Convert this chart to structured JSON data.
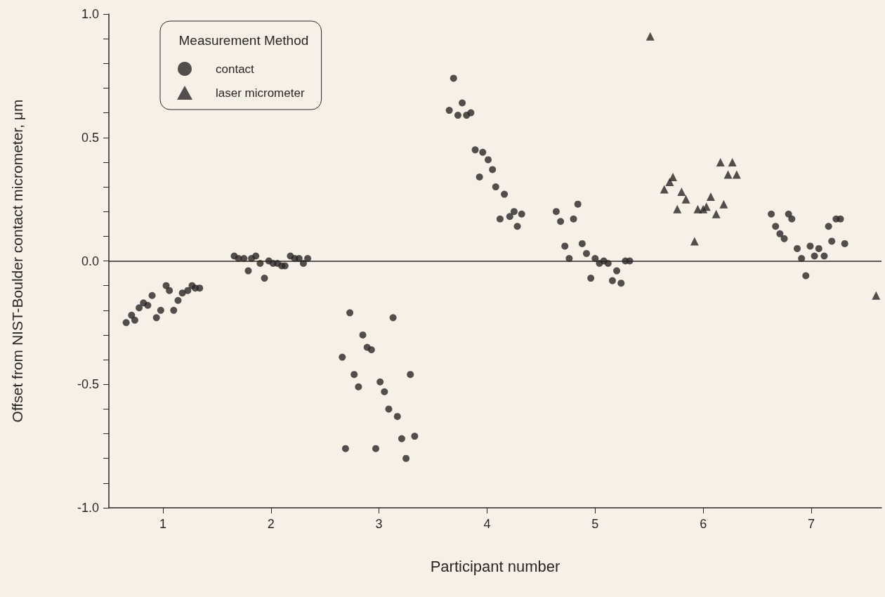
{
  "chart_data": {
    "type": "scatter",
    "xlabel": "Participant number",
    "ylabel": "Offset from NIST-Boulder contact micrometer, μm",
    "legend_title": "Measurement Method",
    "legend": "top left",
    "grid": false,
    "xlim": [
      0.5,
      7.65
    ],
    "xticks": [
      1,
      2,
      3,
      4,
      5,
      6,
      7
    ],
    "ylim": [
      -1.0,
      1.0
    ],
    "yticks": [
      {
        "value": -1.0,
        "label": "-1.0"
      },
      {
        "value": -0.9,
        "label": null
      },
      {
        "value": -0.8,
        "label": null
      },
      {
        "value": -0.7,
        "label": null
      },
      {
        "value": -0.6,
        "label": null
      },
      {
        "value": -0.5,
        "label": "-0.5"
      },
      {
        "value": -0.4,
        "label": null
      },
      {
        "value": -0.3,
        "label": null
      },
      {
        "value": -0.2,
        "label": null
      },
      {
        "value": -0.1,
        "label": null
      },
      {
        "value": 0,
        "label": "0.0"
      },
      {
        "value": 0.1,
        "label": null
      },
      {
        "value": 0.2,
        "label": null
      },
      {
        "value": 0.3,
        "label": null
      },
      {
        "value": 0.4,
        "label": null
      },
      {
        "value": 0.5,
        "label": "0.5"
      },
      {
        "value": 0.6,
        "label": null
      },
      {
        "value": 0.7,
        "label": null
      },
      {
        "value": 0.8,
        "label": null
      },
      {
        "value": 0.9,
        "label": null
      },
      {
        "value": 1.0,
        "label": "1.0"
      }
    ],
    "ref_lines": [
      {
        "axis": "y",
        "value": 0,
        "color": "#2b2626",
        "line_style": "solid"
      }
    ],
    "series": [
      {
        "name": "contact",
        "color": "#2b2626",
        "marker": "circle",
        "x": [
          0.66,
          0.71,
          0.74,
          0.78,
          0.82,
          0.86,
          0.9,
          0.94,
          0.98,
          1.03,
          1.06,
          1.1,
          1.14,
          1.18,
          1.23,
          1.27,
          1.3,
          1.34,
          1.66,
          1.7,
          1.75,
          1.79,
          1.82,
          1.86,
          1.9,
          1.94,
          1.98,
          2.02,
          2.06,
          2.1,
          2.13,
          2.18,
          2.22,
          2.26,
          2.3,
          2.34,
          2.66,
          2.69,
          2.73,
          2.77,
          2.81,
          2.85,
          2.89,
          2.93,
          2.97,
          3.01,
          3.05,
          3.09,
          3.13,
          3.17,
          3.21,
          3.25,
          3.29,
          3.33,
          3.65,
          3.69,
          3.73,
          3.77,
          3.81,
          3.85,
          3.89,
          3.93,
          3.96,
          4.01,
          4.05,
          4.08,
          4.12,
          4.16,
          4.21,
          4.25,
          4.28,
          4.32,
          4.64,
          4.68,
          4.72,
          4.76,
          4.8,
          4.84,
          4.88,
          4.92,
          4.96,
          5.0,
          5.04,
          5.08,
          5.12,
          5.16,
          5.2,
          5.24,
          5.28,
          5.32,
          6.63,
          6.67,
          6.71,
          6.75,
          6.79,
          6.82,
          6.87,
          6.91,
          6.95,
          6.99,
          7.03,
          7.07,
          7.12,
          7.16,
          7.19,
          7.23,
          7.27,
          7.31
        ],
        "values": [
          -0.25,
          -0.22,
          -0.24,
          -0.19,
          -0.17,
          -0.18,
          -0.14,
          -0.23,
          -0.2,
          -0.1,
          -0.12,
          -0.2,
          -0.16,
          -0.13,
          -0.12,
          -0.1,
          -0.11,
          -0.11,
          0.02,
          0.01,
          0.01,
          -0.04,
          0.01,
          0.02,
          -0.01,
          -0.07,
          0.0,
          -0.01,
          -0.01,
          -0.02,
          -0.02,
          0.02,
          0.01,
          0.01,
          -0.01,
          0.01,
          -0.39,
          -0.76,
          -0.21,
          -0.46,
          -0.51,
          -0.3,
          -0.35,
          -0.36,
          -0.76,
          -0.49,
          -0.53,
          -0.6,
          -0.23,
          -0.63,
          -0.72,
          -0.8,
          -0.46,
          -0.71,
          0.61,
          0.74,
          0.59,
          0.64,
          0.59,
          0.6,
          0.45,
          0.34,
          0.44,
          0.41,
          0.37,
          0.3,
          0.17,
          0.27,
          0.18,
          0.2,
          0.14,
          0.19,
          0.2,
          0.16,
          0.06,
          0.01,
          0.17,
          0.23,
          0.07,
          0.03,
          -0.07,
          0.01,
          -0.01,
          0.0,
          -0.01,
          -0.08,
          -0.04,
          -0.09,
          0.0,
          0.0,
          0.19,
          0.14,
          0.11,
          0.09,
          0.19,
          0.17,
          0.05,
          0.01,
          -0.06,
          0.06,
          0.02,
          0.05,
          0.02,
          0.14,
          0.08,
          0.17,
          0.17,
          0.07
        ]
      },
      {
        "name": "laser micrometer",
        "color": "#2b2626",
        "marker": "triangle",
        "x": [
          5.51,
          5.64,
          5.69,
          5.72,
          5.76,
          5.8,
          5.84,
          5.92,
          5.95,
          6.0,
          6.03,
          6.07,
          6.12,
          6.16,
          6.19,
          6.23,
          6.27,
          6.31,
          7.6
        ],
        "values": [
          0.91,
          0.29,
          0.32,
          0.34,
          0.21,
          0.28,
          0.25,
          0.08,
          0.21,
          0.21,
          0.22,
          0.26,
          0.19,
          0.4,
          0.23,
          0.35,
          0.4,
          0.35,
          -0.14
        ]
      }
    ]
  }
}
